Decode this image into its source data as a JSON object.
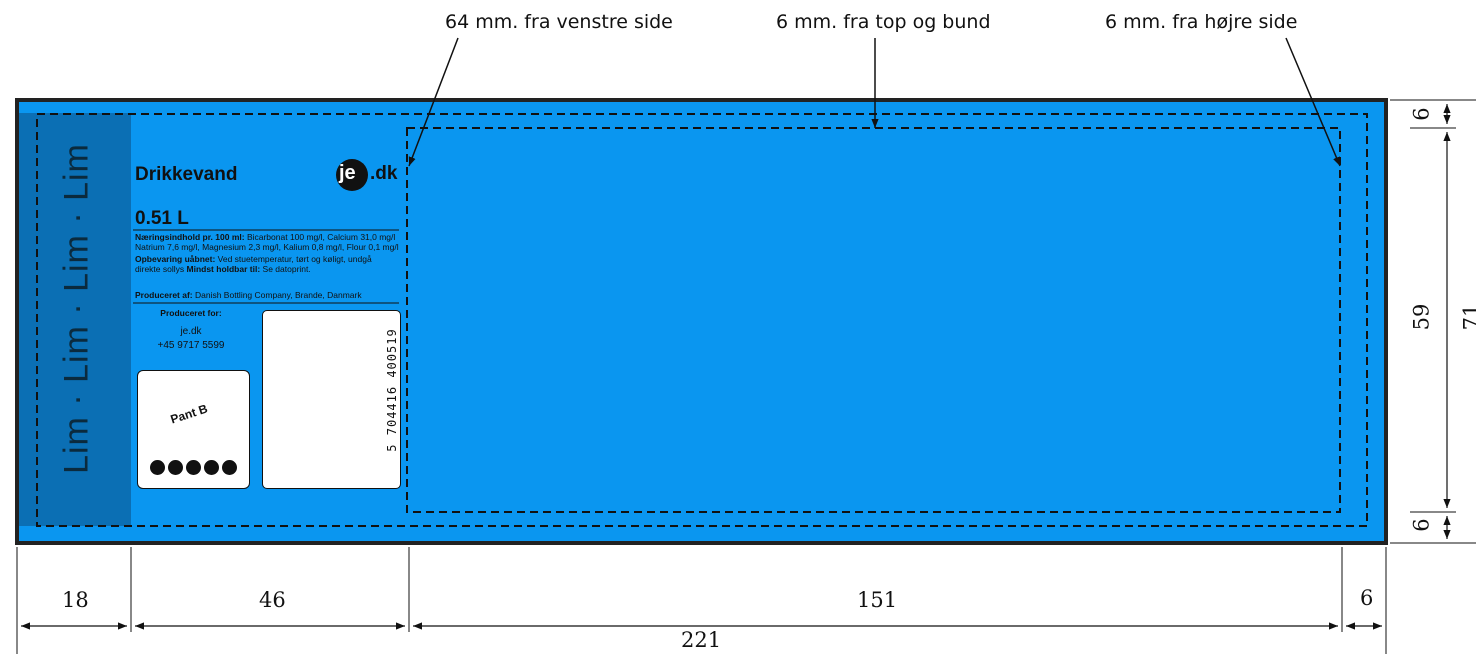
{
  "annotations": {
    "left": "64 mm. fra venstre side",
    "top": "6 mm. fra top og bund",
    "right": "6 mm. fra højre side"
  },
  "dimensions": {
    "bottom": [
      "18",
      "46",
      "151",
      "6"
    ],
    "total_width": "221",
    "right_top": "6",
    "right_middle": "59",
    "right_bottom": "6",
    "total_height": "71"
  },
  "label": {
    "side_text": "Lim · Lim · Lim · Lim",
    "product_name": "Drikkevand",
    "volume": "0.51 L",
    "logo_je": "je",
    "logo_dk": ".dk",
    "nutrition_heading": "Næringsindhold pr. 100 ml:",
    "nutrition_line1": " Bicarbonat 100 mg/l, Calcium 31,0 mg/l",
    "nutrition_line2": "Natrium 7,6 mg/l, Magnesium 2,3 mg/l, Kalium 0,8 mg/l, Flour 0,1 mg/l",
    "storage_heading": "Opbevaring uåbnet:",
    "storage_line1": " Ved stuetemperatur, tørt og køligt, undgå",
    "storage_line2a": "direkte sollys ",
    "best_before_heading": "Mindst holdbar til:",
    "best_before_value": " Se datoprint.",
    "producer_heading": "Produceret af:",
    "producer_value": " Danish Bottling Company,  Brande, Danmark",
    "produced_for_heading": "Produceret for:",
    "produced_for_name": "je.dk",
    "produced_for_phone": "+45 9717 5599",
    "pant_label": "Pant B",
    "barcode_digits": "5 704416 400519"
  },
  "colors": {
    "label_blue": "#0a96f0",
    "side_strip": "#0b6fb4",
    "border": "#222222"
  }
}
